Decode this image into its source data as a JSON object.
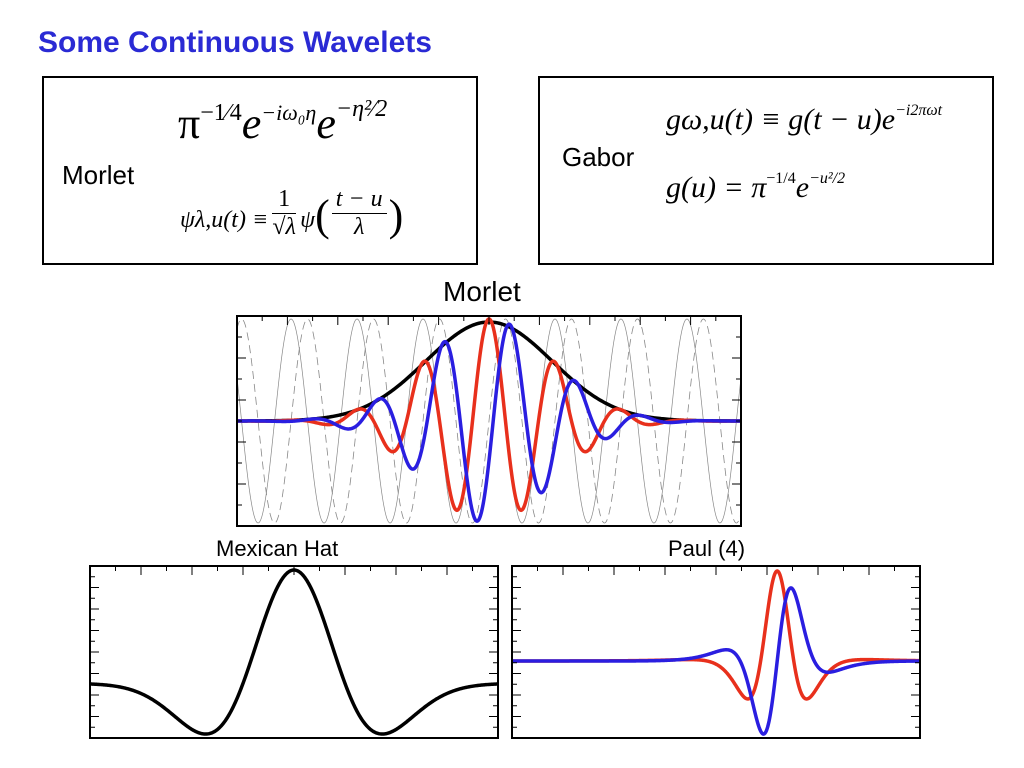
{
  "slide": {
    "title": "Some Continuous Wavelets"
  },
  "morlet_box": {
    "label": "Morlet",
    "formula_main": {
      "base": "π",
      "exp1": "−1⁄4",
      "e1": "e",
      "exp2": "−iω₀η",
      "e2": "e",
      "exp3": "−η²⁄2"
    },
    "formula_def": {
      "lhs": "ψλ,u(t) ≡",
      "frac_num": "1",
      "frac_den": "√λ",
      "psi": "ψ",
      "arg_num": "t − u",
      "arg_den": "λ"
    }
  },
  "gabor_box": {
    "label": "Gabor",
    "formula_1": {
      "text": "gω,u(t) ≡ g(t − u)e",
      "exp": "−i2πωt"
    },
    "formula_2": {
      "text": "g(u) = π",
      "exp1": "−1/4",
      "mid": "e",
      "exp2": "−u²/2"
    }
  },
  "plots": {
    "morlet_title": "Morlet",
    "mexican_hat_title": "Mexican Hat",
    "paul_title": "Paul (4)"
  },
  "colors": {
    "title": "#2a2ad4",
    "real": "#e8301c",
    "imag": "#2a1ee0",
    "envelope": "#000000"
  }
}
